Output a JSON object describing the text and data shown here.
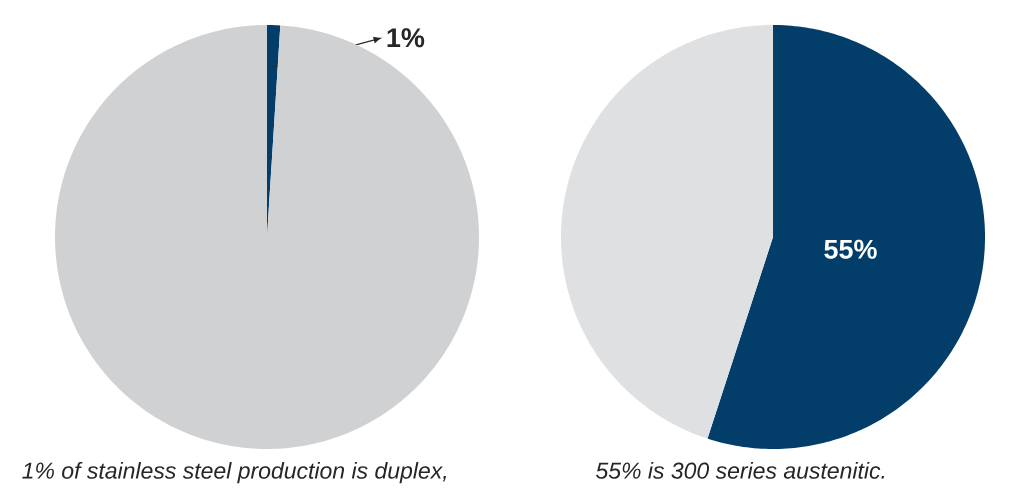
{
  "chart_data": [
    {
      "type": "pie",
      "categories": [
        null,
        null
      ],
      "values": [
        1,
        99
      ],
      "colors": [
        "#033e6b",
        "#d0d1d3"
      ],
      "value_labels": [
        "1%",
        null
      ],
      "annotations": [
        "*1% of stainless steel production is duplex,*"
      ]
    },
    {
      "type": "pie",
      "categories": [
        null,
        null
      ],
      "values": [
        55,
        45
      ],
      "colors": [
        "#033e6b",
        "#dfe0e2"
      ],
      "value_labels": [
        "55%",
        null
      ],
      "annotations": [
        "55% is 300 series austenitic."
      ]
    }
  ]
}
